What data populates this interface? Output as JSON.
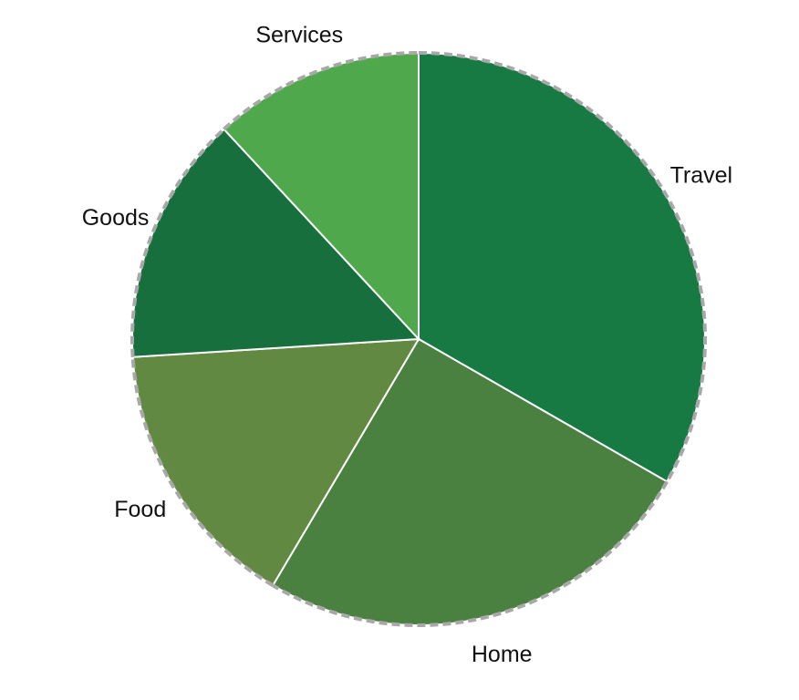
{
  "chart_data": {
    "type": "pie",
    "categories": [
      "Travel",
      "Home",
      "Food",
      "Goods",
      "Services"
    ],
    "values": [
      33.3,
      25.2,
      15.5,
      14.1,
      11.9
    ],
    "colors": [
      "#187a43",
      "#4a8141",
      "#628941",
      "#176f3e",
      "#50a84d"
    ],
    "start_angle_deg": 0,
    "direction": "clockwise",
    "outline": "dashed-gray",
    "legend": "none"
  }
}
